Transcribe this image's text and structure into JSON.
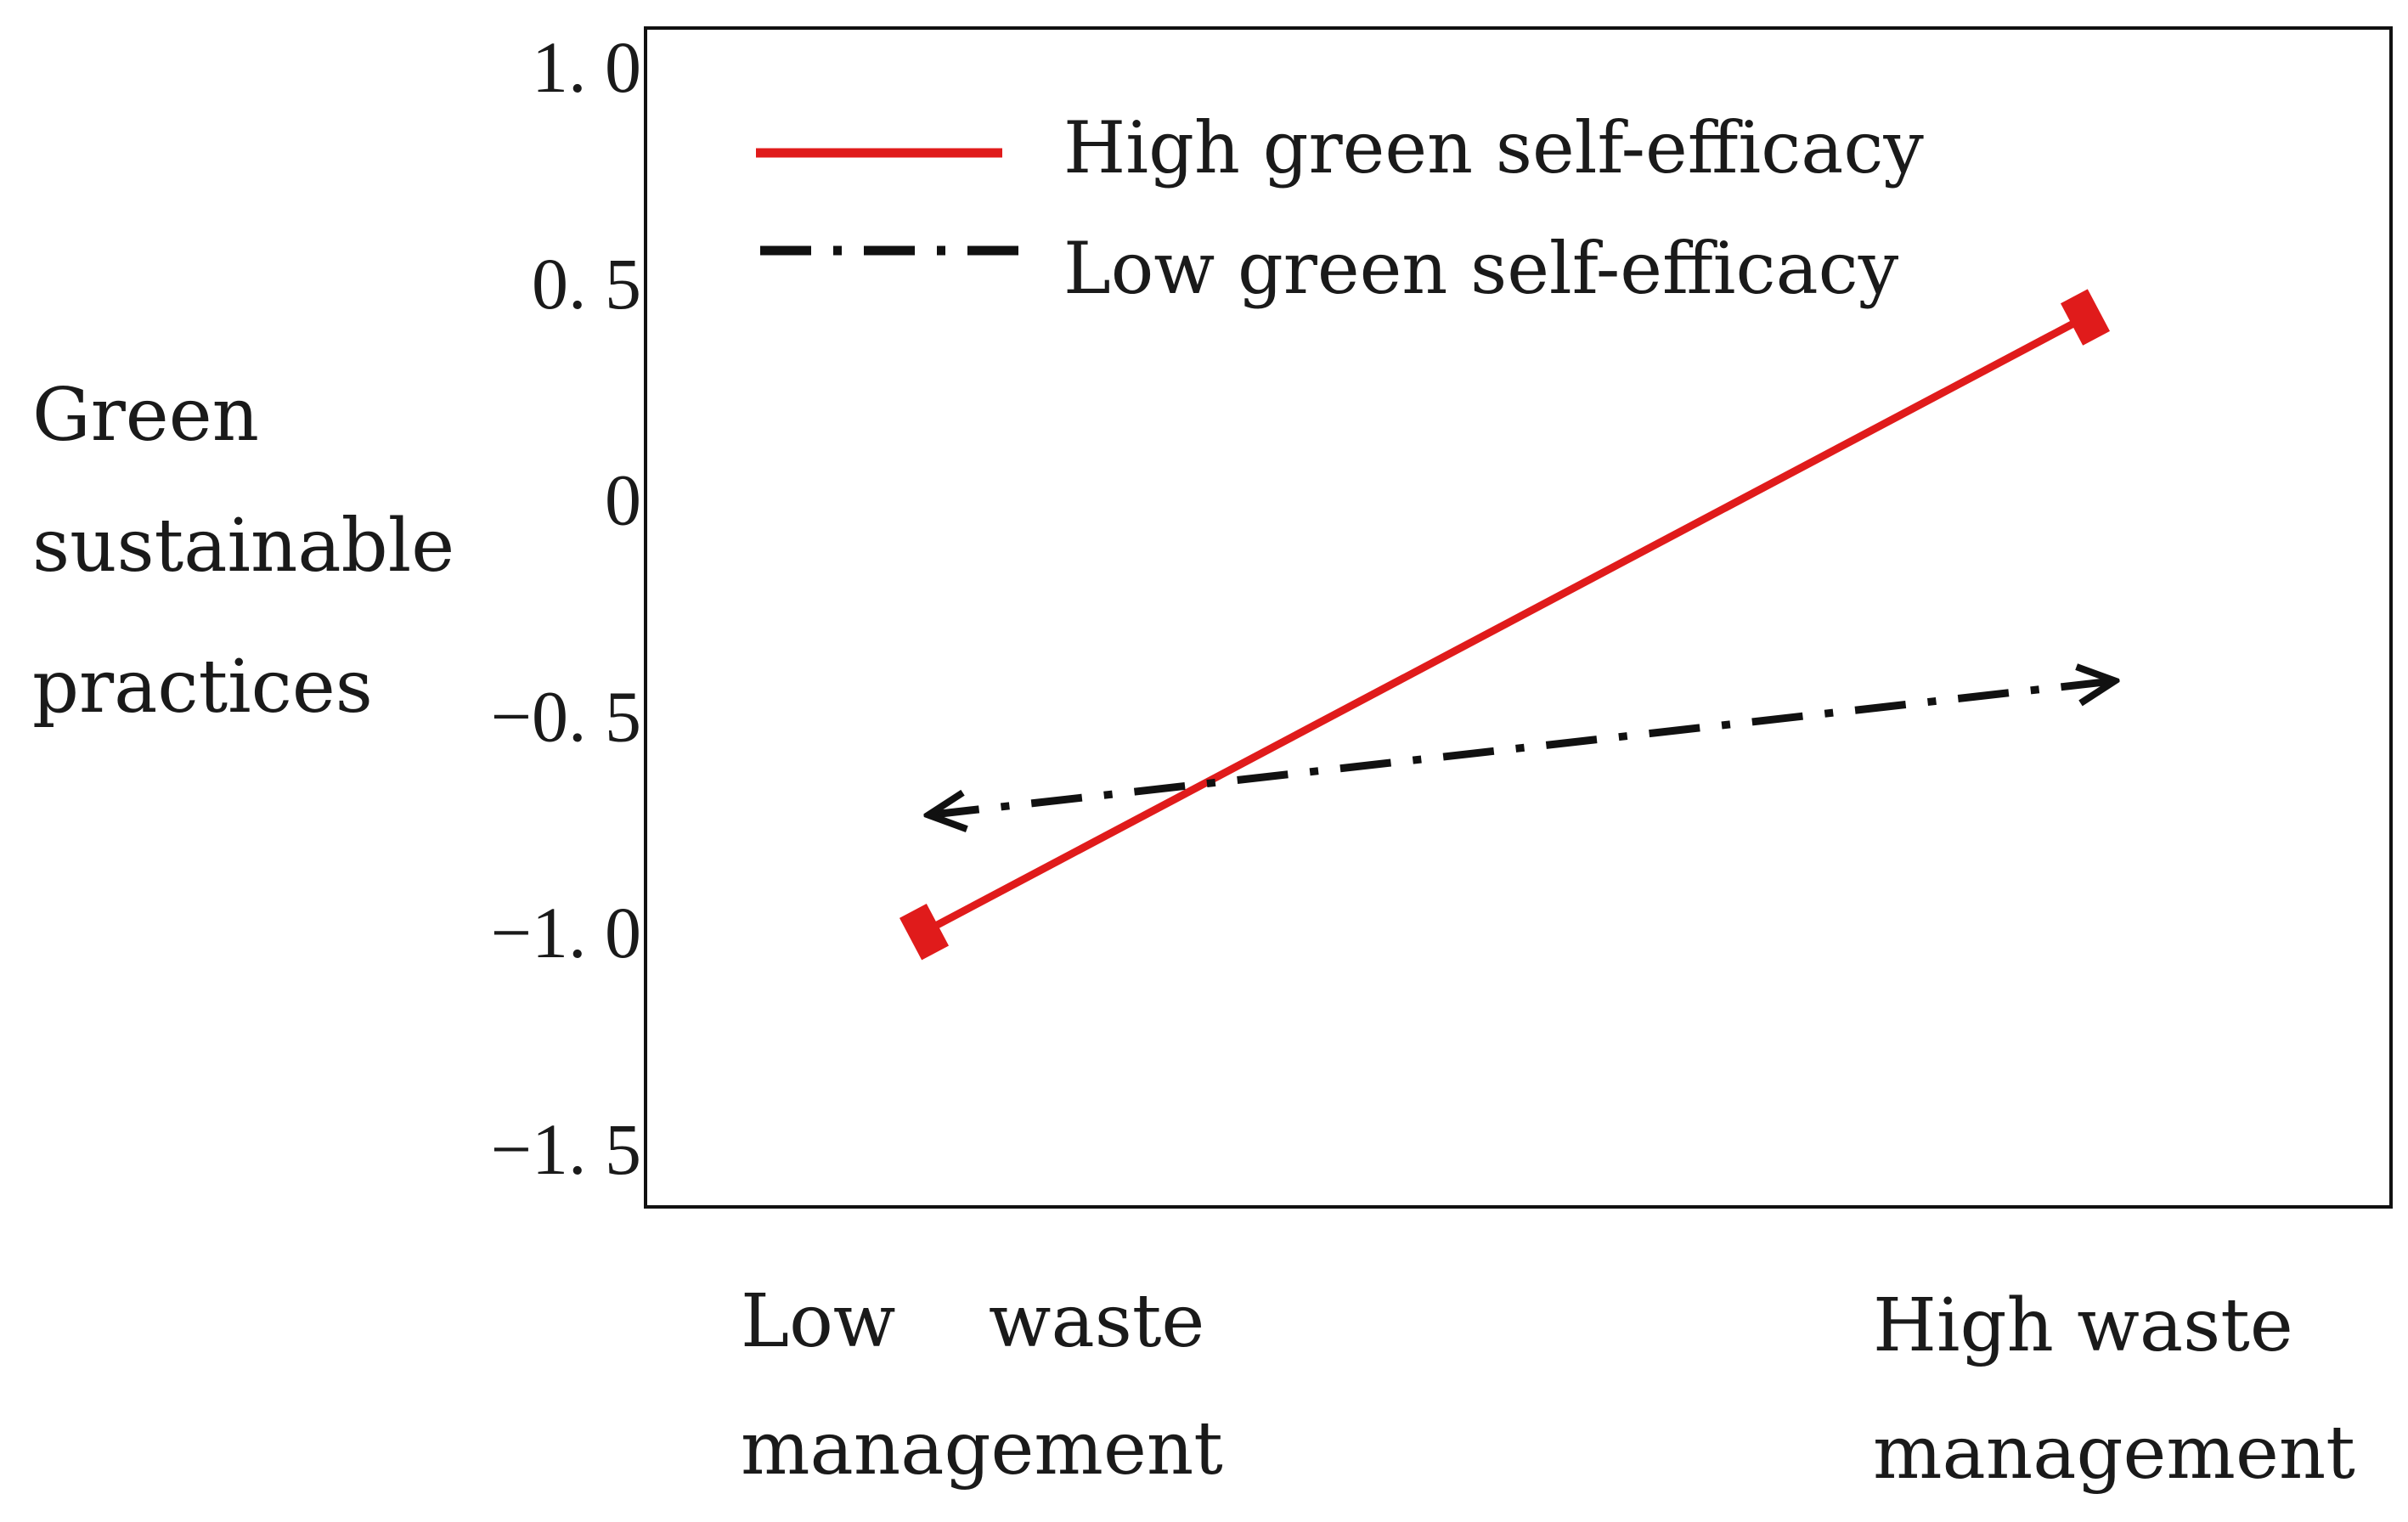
{
  "chart_data": {
    "type": "line",
    "title": "",
    "xlabel": "",
    "ylabel_lines": [
      "Green",
      "sustainable",
      "practices"
    ],
    "categories": [
      {
        "lines": [
          "Low    waste",
          "management"
        ]
      },
      {
        "lines": [
          "High waste",
          "management"
        ]
      }
    ],
    "yticks": [
      1.0,
      0.5,
      0,
      -0.5,
      -1.0,
      -1.5
    ],
    "ytick_labels": [
      "1. 0",
      "0. 5",
      "0",
      "−0. 5",
      "−1. 0",
      "−1. 5"
    ],
    "ylim": [
      -1.6,
      1.1
    ],
    "grid": false,
    "legend_position": "top-left",
    "series": [
      {
        "name": "High green self-efficacy",
        "values": [
          -1.0,
          0.42
        ],
        "color": "#e01b1b",
        "style": "solid"
      },
      {
        "name": "Low green self-efficacy",
        "values": [
          -0.73,
          -0.42
        ],
        "color": "#111111",
        "style": "dash-dot"
      }
    ]
  }
}
